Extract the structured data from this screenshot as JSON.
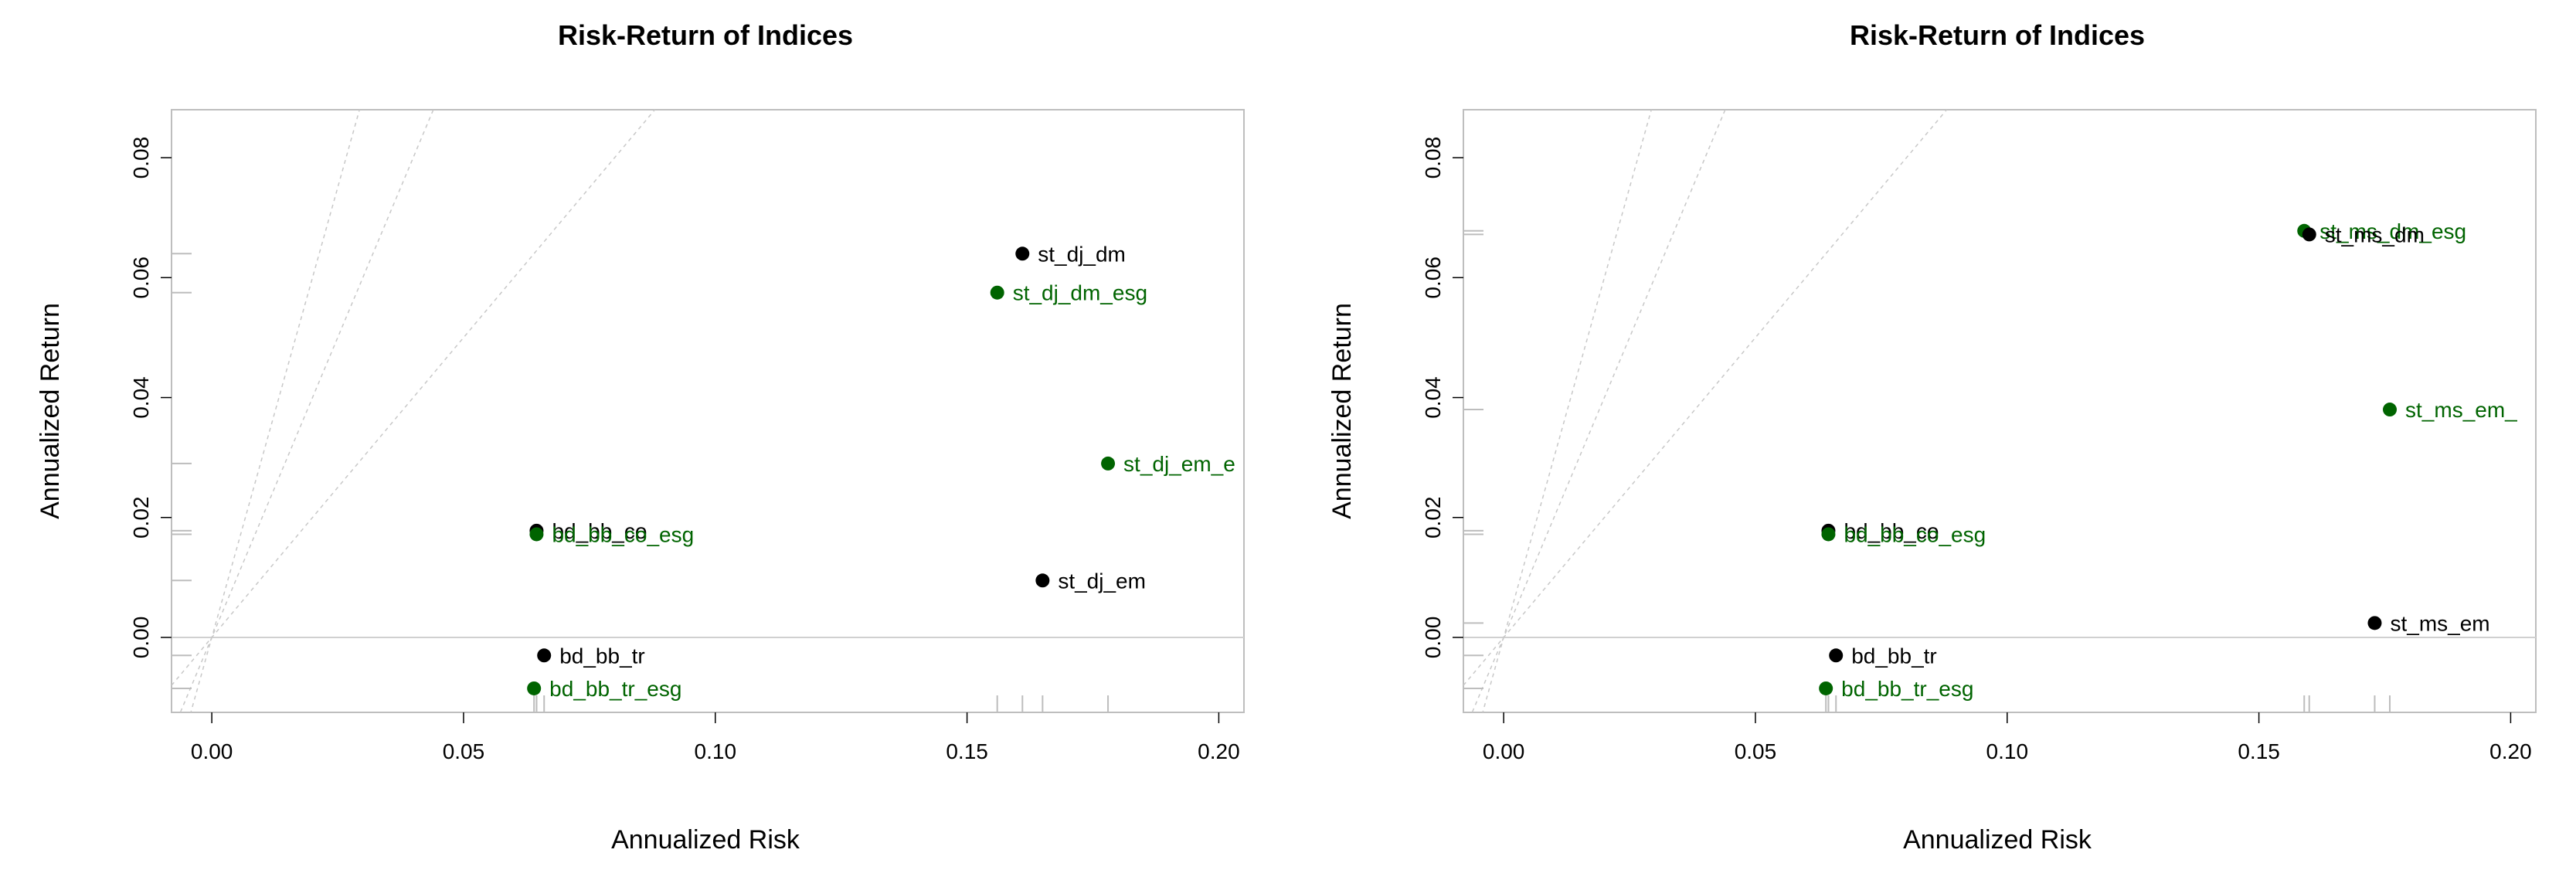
{
  "colors": {
    "black": "#000000",
    "green": "#006400",
    "rug": "#bdbdbd",
    "guide": "#c8c8c8",
    "zero": "#d0d0d0",
    "frame": "#bebebe"
  },
  "chart_data": [
    {
      "type": "scatter",
      "title": "Risk-Return of Indices",
      "xlabel": "Annualized Risk",
      "ylabel": "Annualized Return",
      "xlim": [
        -0.008,
        0.205
      ],
      "ylim": [
        -0.0125,
        0.088
      ],
      "xticks": [
        "0.00",
        "0.05",
        "0.10",
        "0.15",
        "0.20"
      ],
      "yticks": [
        "0.00",
        "0.02",
        "0.04",
        "0.06",
        "0.08"
      ],
      "xtick_values": [
        0,
        0.05,
        0.1,
        0.15,
        0.2
      ],
      "ytick_values": [
        0,
        0.02,
        0.04,
        0.06,
        0.08
      ],
      "grid": false,
      "rug": true,
      "reference_line_y": 0,
      "reference_slopes": [
        3.0,
        2.0,
        1.0
      ],
      "points": [
        {
          "label": "st_dj_dm",
          "x": 0.161,
          "y": 0.064,
          "color": "black"
        },
        {
          "label": "st_dj_dm_esg",
          "x": 0.156,
          "y": 0.0575,
          "color": "green"
        },
        {
          "label": "st_dj_em_e",
          "x": 0.178,
          "y": 0.029,
          "color": "green"
        },
        {
          "label": "st_dj_em",
          "x": 0.165,
          "y": 0.0095,
          "color": "black"
        },
        {
          "label": "bd_bb_co",
          "x": 0.0645,
          "y": 0.0178,
          "color": "black"
        },
        {
          "label": "bd_bb_co_esg",
          "x": 0.0645,
          "y": 0.0172,
          "color": "green"
        },
        {
          "label": "bd_bb_tr",
          "x": 0.066,
          "y": -0.003,
          "color": "black"
        },
        {
          "label": "bd_bb_tr_esg",
          "x": 0.064,
          "y": -0.0085,
          "color": "green"
        }
      ]
    },
    {
      "type": "scatter",
      "title": "Risk-Return of Indices",
      "xlabel": "Annualized Risk",
      "ylabel": "Annualized Return",
      "xlim": [
        -0.008,
        0.205
      ],
      "ylim": [
        -0.0125,
        0.088
      ],
      "xticks": [
        "0.00",
        "0.05",
        "0.10",
        "0.15",
        "0.20"
      ],
      "yticks": [
        "0.00",
        "0.02",
        "0.04",
        "0.06",
        "0.08"
      ],
      "xtick_values": [
        0,
        0.05,
        0.1,
        0.15,
        0.2
      ],
      "ytick_values": [
        0,
        0.02,
        0.04,
        0.06,
        0.08
      ],
      "grid": false,
      "rug": true,
      "reference_line_y": 0,
      "reference_slopes": [
        3.0,
        2.0,
        1.0
      ],
      "points": [
        {
          "label": "st_ms_dm_esg",
          "x": 0.159,
          "y": 0.0678,
          "color": "green"
        },
        {
          "label": "st_ms_dm",
          "x": 0.16,
          "y": 0.0672,
          "color": "black"
        },
        {
          "label": "st_ms_em_",
          "x": 0.176,
          "y": 0.038,
          "color": "green"
        },
        {
          "label": "st_ms_em",
          "x": 0.173,
          "y": 0.0024,
          "color": "black"
        },
        {
          "label": "bd_bb_co",
          "x": 0.0645,
          "y": 0.0178,
          "color": "black"
        },
        {
          "label": "bd_bb_co_esg",
          "x": 0.0645,
          "y": 0.0172,
          "color": "green"
        },
        {
          "label": "bd_bb_tr",
          "x": 0.066,
          "y": -0.003,
          "color": "black"
        },
        {
          "label": "bd_bb_tr_esg",
          "x": 0.064,
          "y": -0.0085,
          "color": "green"
        }
      ]
    }
  ]
}
